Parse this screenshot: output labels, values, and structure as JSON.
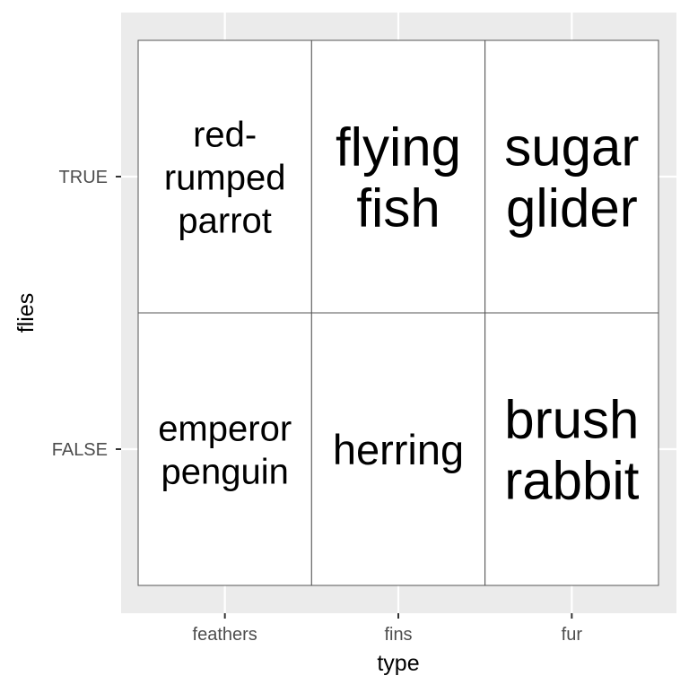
{
  "chart_data": {
    "type": "table",
    "xlabel": "type",
    "ylabel": "flies",
    "x_categories": [
      "feathers",
      "fins",
      "fur"
    ],
    "y_categories": [
      "TRUE",
      "FALSE"
    ],
    "grid": true,
    "colors": {
      "panel_background": "#ebebeb",
      "grid_line": "#ffffff",
      "tile_fill": "#ffffff",
      "tile_border": "#555555",
      "axis_text": "#4d4d4d",
      "title_text": "#000000"
    },
    "cells": [
      {
        "x": "feathers",
        "y": "TRUE",
        "lines": [
          "red-",
          "rumped",
          "parrot"
        ],
        "size": 3
      },
      {
        "x": "fins",
        "y": "TRUE",
        "lines": [
          "flying",
          "fish"
        ],
        "size": 5
      },
      {
        "x": "fur",
        "y": "TRUE",
        "lines": [
          "sugar",
          "glider"
        ],
        "size": 5
      },
      {
        "x": "feathers",
        "y": "FALSE",
        "lines": [
          "emperor",
          "penguin"
        ],
        "size": 3
      },
      {
        "x": "fins",
        "y": "FALSE",
        "lines": [
          "herring"
        ],
        "size": 4
      },
      {
        "x": "fur",
        "y": "FALSE",
        "lines": [
          "brush",
          "rabbit"
        ],
        "size": 6
      }
    ]
  }
}
